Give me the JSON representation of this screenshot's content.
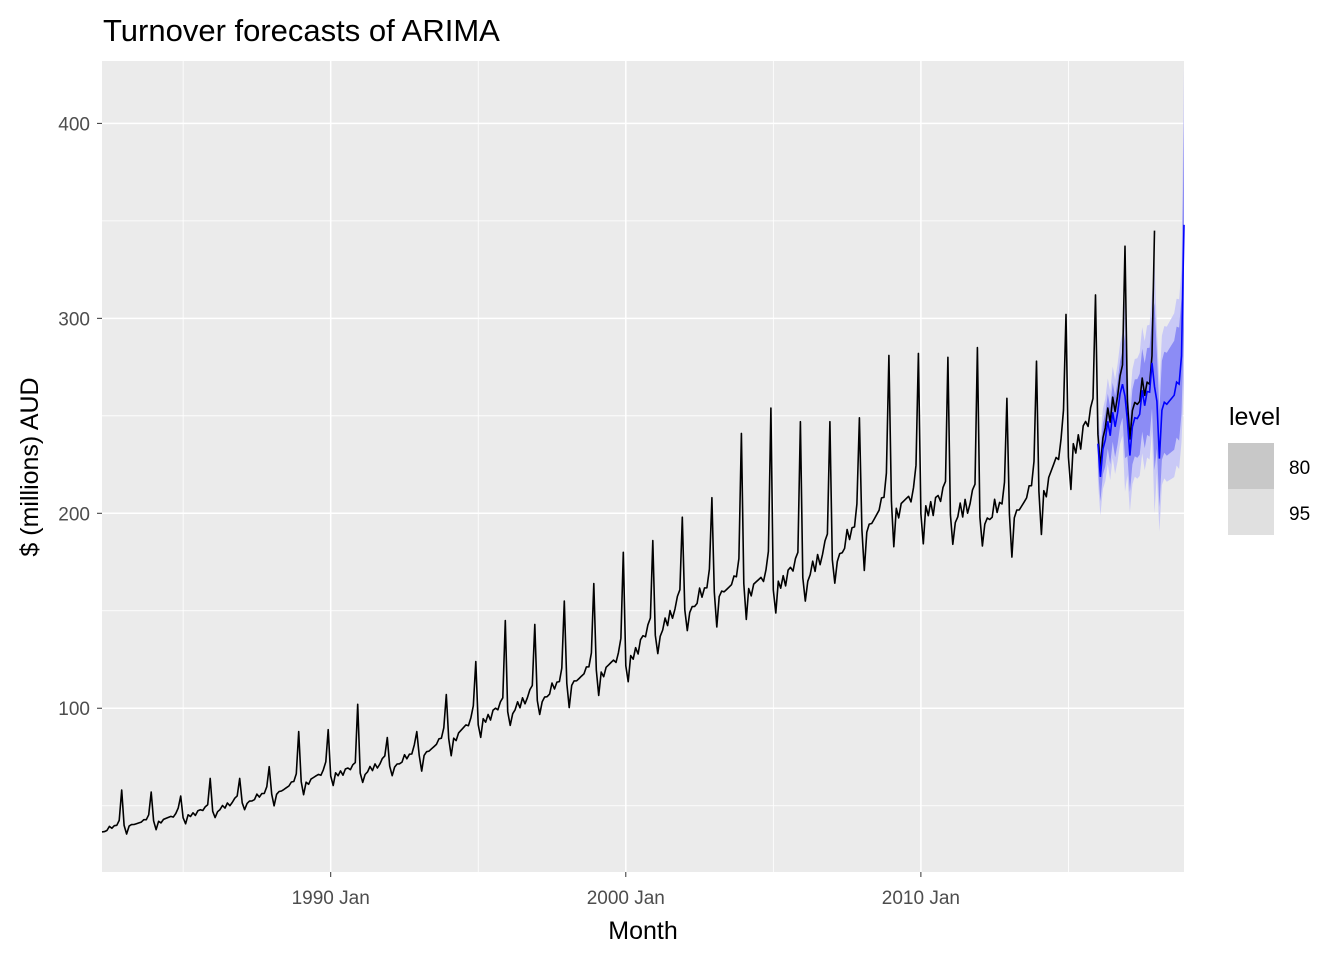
{
  "chart_data": {
    "type": "line",
    "title": "Turnover forecasts of ARIMA",
    "xlabel": "Month",
    "ylabel": "$ (millions) AUD",
    "x_range": [
      "1982-04",
      "2018-12"
    ],
    "ylim": [
      16,
      432
    ],
    "y_ticks": [
      100,
      200,
      300,
      400
    ],
    "x_ticks": [
      {
        "date": "1990-01",
        "label": "1990 Jan"
      },
      {
        "date": "2000-01",
        "label": "2000 Jan"
      },
      {
        "date": "2010-01",
        "label": "2010 Jan"
      }
    ],
    "grid": true,
    "legend": {
      "title": "level",
      "position": "right",
      "entries": [
        {
          "label": "80",
          "color": "#c8c8c8"
        },
        {
          "label": "95",
          "color": "#e0e0e0"
        }
      ]
    },
    "colors": {
      "panel_bg": "#ebebeb",
      "grid": "#ffffff",
      "actual": "#000000",
      "forecast": "#0000ff",
      "interval_80": "#8c8cf5",
      "interval_95": "#c9c9f6"
    },
    "actual_series": {
      "name": "Turnover",
      "start": "1982-04",
      "frequency": "monthly",
      "annual_anchors": [
        {
          "year": 1982,
          "base": 36,
          "dec_peak": 58
        },
        {
          "year": 1983,
          "base": 40,
          "dec_peak": 57
        },
        {
          "year": 1984,
          "base": 42,
          "dec_peak": 55
        },
        {
          "year": 1985,
          "base": 45,
          "dec_peak": 64
        },
        {
          "year": 1986,
          "base": 48,
          "dec_peak": 64
        },
        {
          "year": 1987,
          "base": 52,
          "dec_peak": 70
        },
        {
          "year": 1988,
          "base": 56,
          "dec_peak": 88
        },
        {
          "year": 1989,
          "base": 62,
          "dec_peak": 89
        },
        {
          "year": 1990,
          "base": 67,
          "dec_peak": 102
        },
        {
          "year": 1991,
          "base": 68,
          "dec_peak": 85
        },
        {
          "year": 1992,
          "base": 71,
          "dec_peak": 88
        },
        {
          "year": 1993,
          "base": 76,
          "dec_peak": 107
        },
        {
          "year": 1994,
          "base": 84,
          "dec_peak": 124
        },
        {
          "year": 1995,
          "base": 94,
          "dec_peak": 145
        },
        {
          "year": 1996,
          "base": 100,
          "dec_peak": 143
        },
        {
          "year": 1997,
          "base": 105,
          "dec_peak": 155
        },
        {
          "year": 1998,
          "base": 113,
          "dec_peak": 164
        },
        {
          "year": 1999,
          "base": 119,
          "dec_peak": 180
        },
        {
          "year": 2000,
          "base": 125,
          "dec_peak": 186
        },
        {
          "year": 2001,
          "base": 140,
          "dec_peak": 198
        },
        {
          "year": 2002,
          "base": 152,
          "dec_peak": 208
        },
        {
          "year": 2003,
          "base": 160,
          "dec_peak": 241
        },
        {
          "year": 2004,
          "base": 163,
          "dec_peak": 254
        },
        {
          "year": 2005,
          "base": 165,
          "dec_peak": 247
        },
        {
          "year": 2006,
          "base": 170,
          "dec_peak": 247
        },
        {
          "year": 2007,
          "base": 178,
          "dec_peak": 249
        },
        {
          "year": 2008,
          "base": 192,
          "dec_peak": 281
        },
        {
          "year": 2009,
          "base": 205,
          "dec_peak": 282
        },
        {
          "year": 2010,
          "base": 205,
          "dec_peak": 280
        },
        {
          "year": 2011,
          "base": 203,
          "dec_peak": 285
        },
        {
          "year": 2012,
          "base": 200,
          "dec_peak": 259
        },
        {
          "year": 2013,
          "base": 200,
          "dec_peak": 278
        },
        {
          "year": 2014,
          "base": 210,
          "dec_peak": 302
        },
        {
          "year": 2015,
          "base": 235,
          "dec_peak": 312
        },
        {
          "year": 2016,
          "base": 245,
          "dec_peak": 337
        },
        {
          "year": 2017,
          "base": 260,
          "dec_peak": 345
        }
      ]
    },
    "forecast_series": {
      "name": "ARIMA forecast",
      "start": "2016-01",
      "end": "2018-12",
      "annual_anchors": [
        {
          "year": 2016,
          "base": 240,
          "dec_peak": 260
        },
        {
          "year": 2017,
          "base": 250,
          "dec_peak": 265
        },
        {
          "year": 2018,
          "base": 258,
          "dec_peak": 348
        }
      ],
      "interval_80_halfwidth": [
        12,
        30
      ],
      "interval_95_halfwidth": [
        19,
        45
      ]
    }
  }
}
